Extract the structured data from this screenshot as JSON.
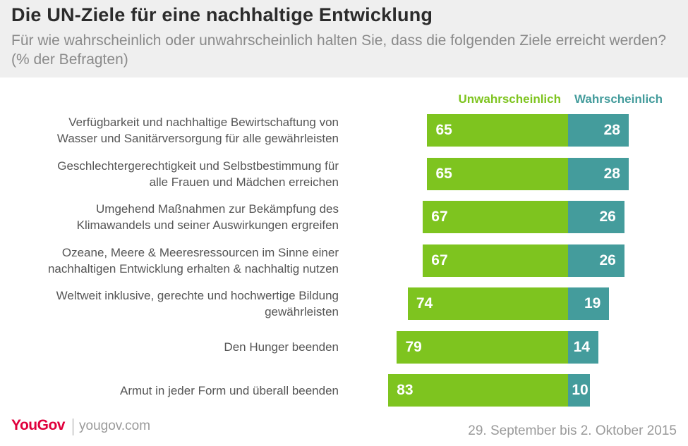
{
  "header": {
    "title": "Die UN-Ziele für eine nachhaltige Entwicklung",
    "subtitle": "Für wie wahrscheinlich oder unwahrscheinlich halten Sie, dass die folgenden Ziele erreicht werden? (% der Befragten)"
  },
  "colors": {
    "unlikely": "#7ec41f",
    "likely": "#449c9c"
  },
  "chart_data": {
    "type": "bar",
    "orientation": "horizontal-diverging",
    "title": "Die UN-Ziele für eine nachhaltige Entwicklung",
    "subtitle": "Für wie wahrscheinlich oder unwahrscheinlich halten Sie, dass die folgenden Ziele erreicht werden? (% der Befragten)",
    "unit": "% der Befragten",
    "legend_position": "top-right",
    "categories": [
      [
        "Verfügbarkeit und nachhaltige Bewirtschaftung von",
        "Wasser und Sanitärversorgung für alle gewährleisten"
      ],
      [
        "Geschlechtergerechtigkeit und Selbstbestimmung für",
        "alle Frauen und Mädchen erreichen"
      ],
      [
        "Umgehend Maßnahmen zur Bekämpfung des",
        "Klimawandels und seiner Auswirkungen ergreifen"
      ],
      [
        "Ozeane, Meere & Meeresressourcen im Sinne einer",
        "nachhaltigen Entwicklung erhalten & nachhaltig nutzen"
      ],
      [
        "Weltweit inklusive, gerechte und hochwertige Bildung",
        "gewährleisten"
      ],
      [
        "Den Hunger beenden"
      ],
      [
        "Armut in jeder Form und überall beenden"
      ]
    ],
    "series": [
      {
        "name": "Unwahrscheinlich",
        "values": [
          65,
          65,
          67,
          67,
          74,
          79,
          83
        ]
      },
      {
        "name": "Wahrscheinlich",
        "values": [
          28,
          28,
          26,
          26,
          19,
          14,
          10
        ]
      }
    ]
  },
  "footer": {
    "logo": "YouGov",
    "site": "yougov.com",
    "date": "29. September bis 2. Oktober 2015"
  }
}
